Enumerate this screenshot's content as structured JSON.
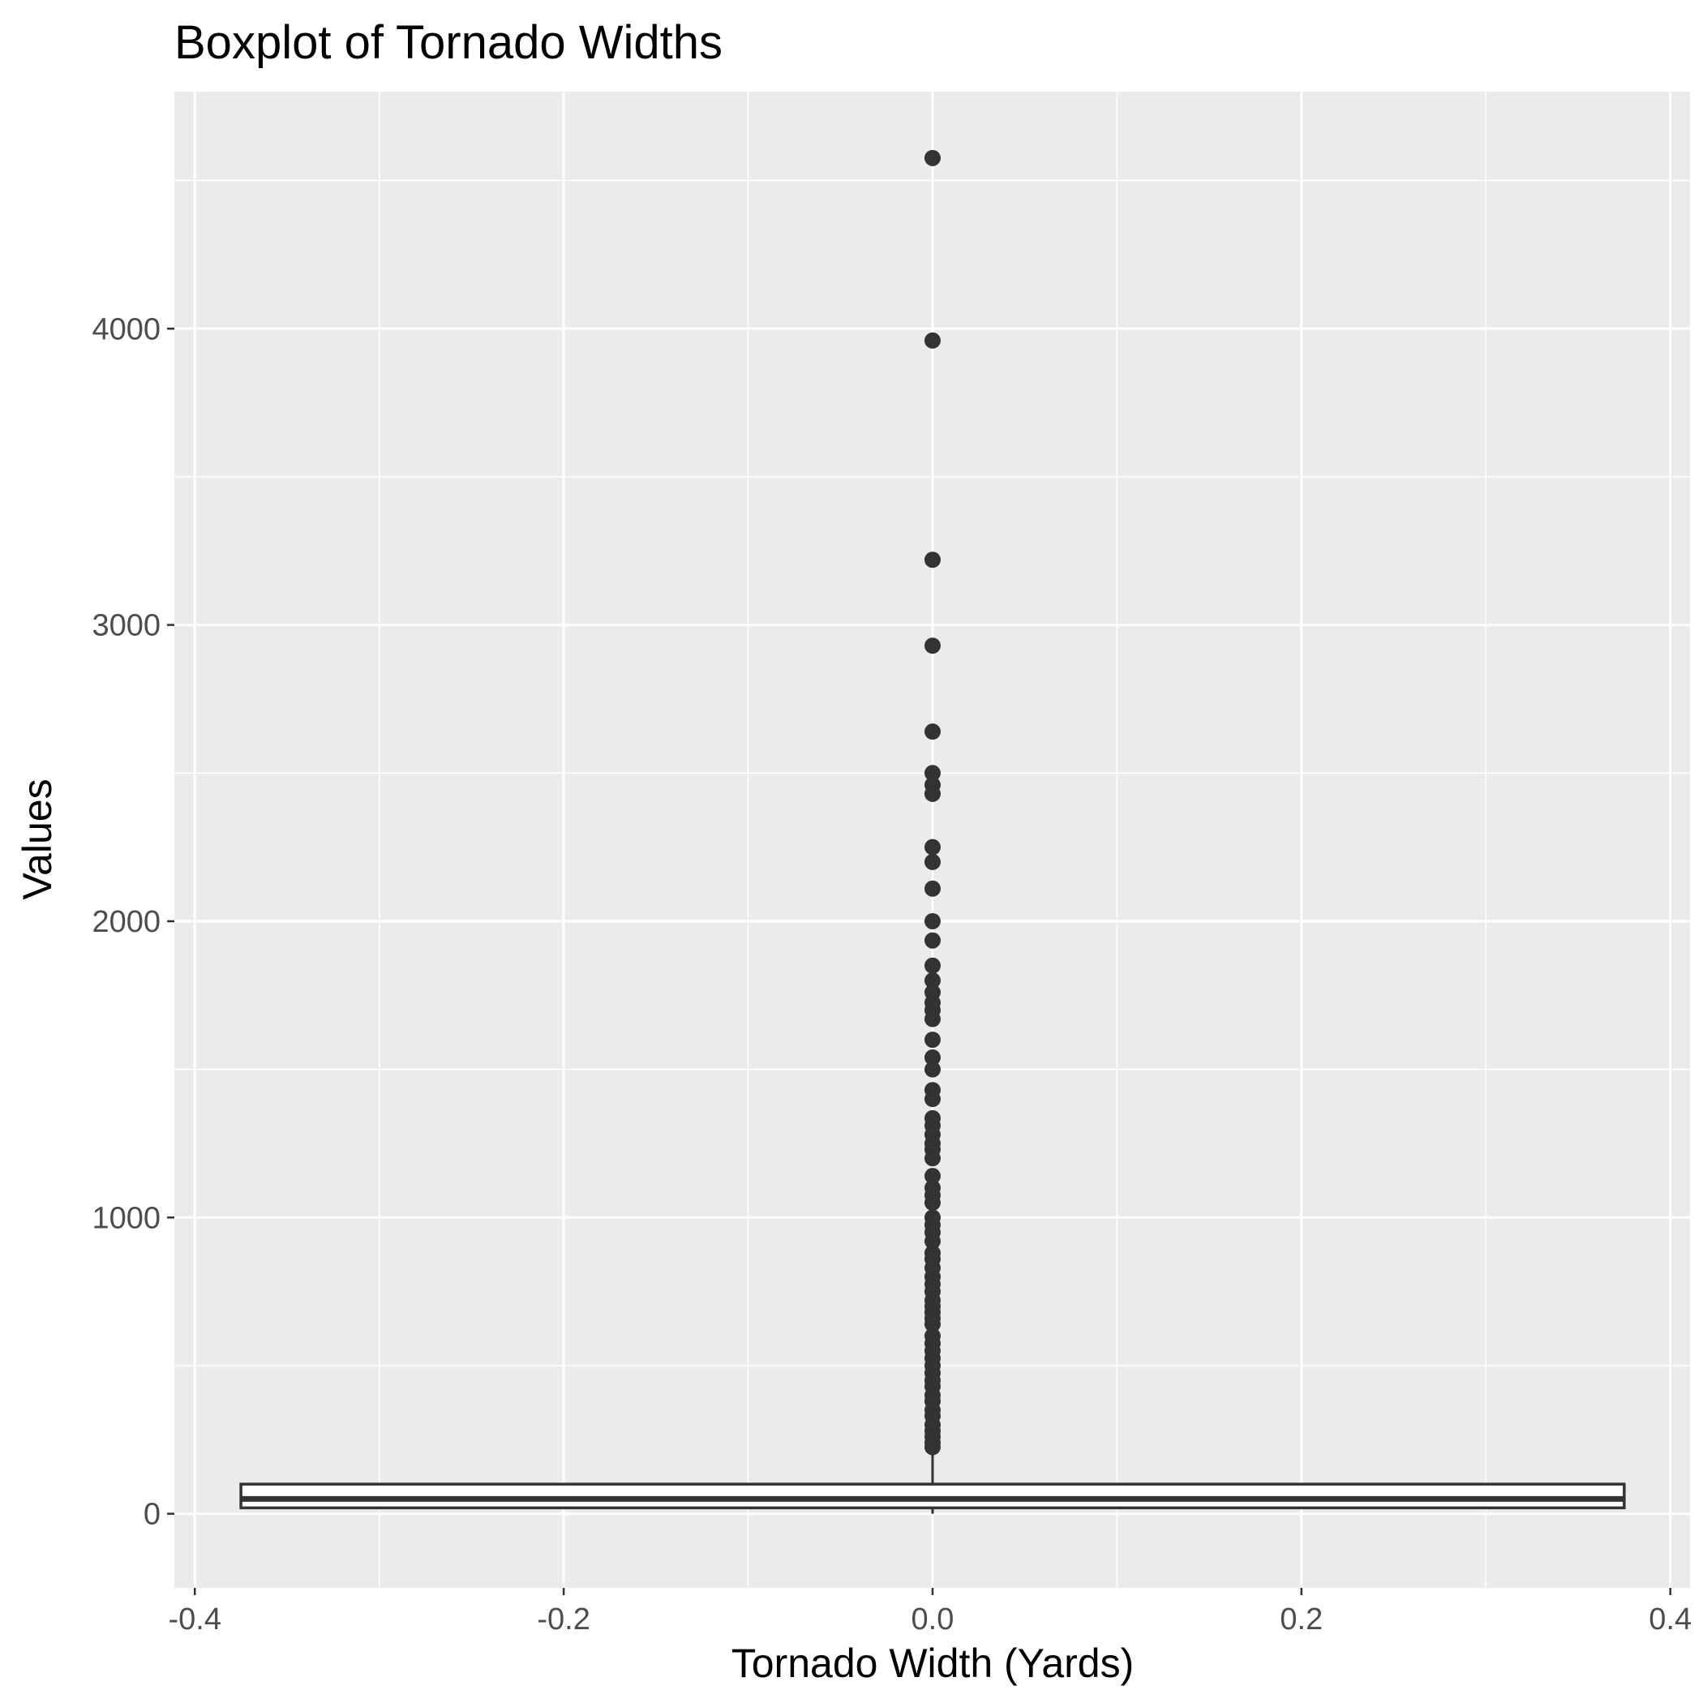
{
  "chart_data": {
    "type": "boxplot",
    "title": "Boxplot of Tornado Widths",
    "xlabel": "Tornado Width (Yards)",
    "ylabel": "Values",
    "xlim": [
      -0.4,
      0.4
    ],
    "ylim": [
      -250,
      4800
    ],
    "x_ticks": [
      -0.4,
      -0.2,
      0.0,
      0.2,
      0.4
    ],
    "x_tick_labels": [
      "-0.4",
      "-0.2",
      "0.0",
      "0.2",
      "0.4"
    ],
    "y_ticks": [
      0,
      1000,
      2000,
      3000,
      4000
    ],
    "y_tick_labels": [
      "0",
      "1000",
      "2000",
      "3000",
      "4000"
    ],
    "grid": true,
    "box": {
      "x": 0.0,
      "x_range": [
        -0.375,
        0.375
      ],
      "q1": 20,
      "median": 50,
      "q3": 100,
      "whisker_low": 0,
      "whisker_high": 220,
      "outliers": [
        4576,
        3960,
        3220,
        2930,
        2640,
        2500,
        2460,
        2430,
        2250,
        2200,
        2110,
        2000,
        1935,
        1850,
        1800,
        1760,
        1725,
        1700,
        1670,
        1600,
        1540,
        1500,
        1430,
        1400,
        1335,
        1310,
        1280,
        1250,
        1230,
        1200,
        1140,
        1100,
        1075,
        1050,
        1000,
        975,
        950,
        920,
        880,
        860,
        830,
        800,
        775,
        750,
        720,
        700,
        680,
        660,
        640,
        600,
        575,
        550,
        525,
        500,
        475,
        450,
        430,
        400,
        380,
        350,
        330,
        300,
        280,
        260,
        240,
        225
      ]
    },
    "colors": {
      "panel": "#ebebeb",
      "grid": "#ffffff",
      "box_stroke": "#333333",
      "box_fill": "#ffffff",
      "points": "#333333"
    }
  }
}
